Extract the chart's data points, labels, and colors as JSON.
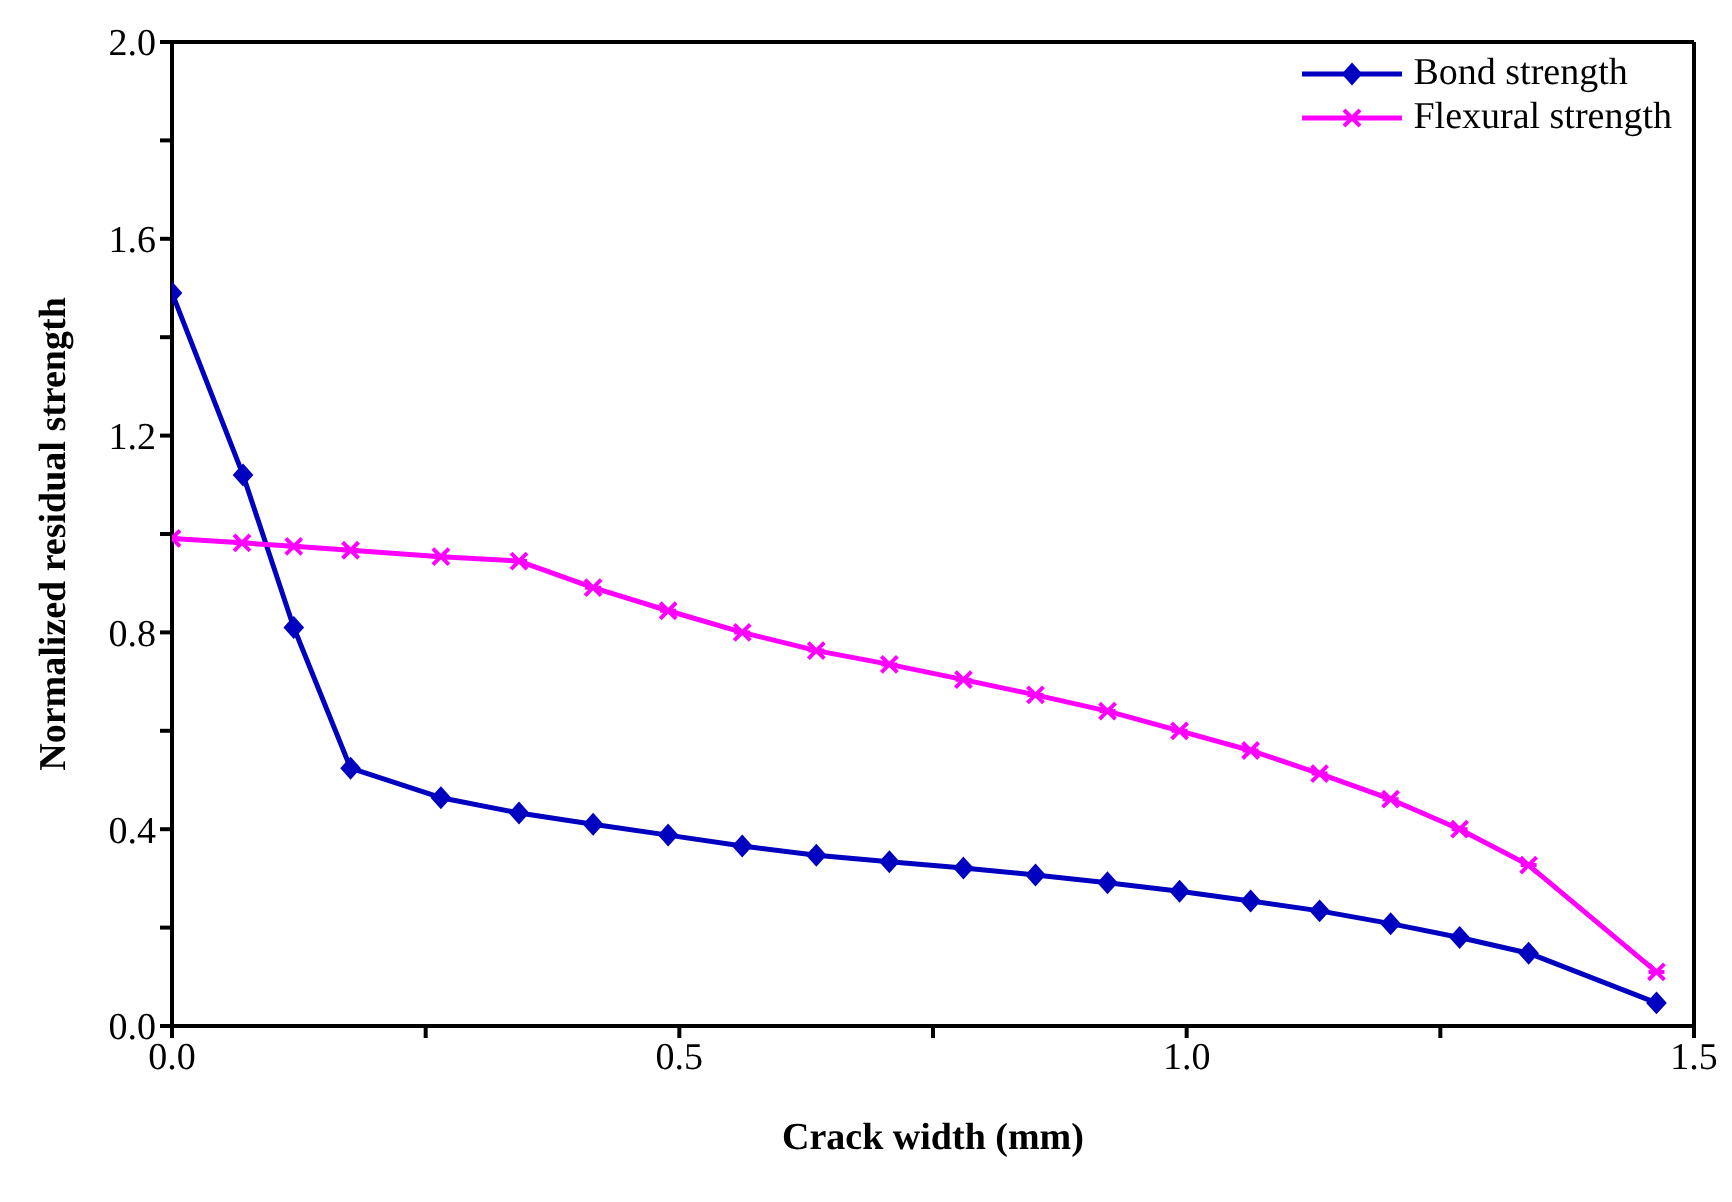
{
  "chart_data": {
    "type": "line",
    "xlabel": "Crack width (mm)",
    "ylabel": "Normalized residual  strength",
    "xlim": [
      0,
      1.5
    ],
    "xticks": [
      {
        "value": 0,
        "label": "0.0"
      },
      {
        "value": 0.25,
        "label": null
      },
      {
        "value": 0.5,
        "label": "0.5"
      },
      {
        "value": 0.75,
        "label": null
      },
      {
        "value": 1,
        "label": "1.0"
      },
      {
        "value": 1.25,
        "label": null
      },
      {
        "value": 1.5,
        "label": "1.5"
      }
    ],
    "ylim": [
      0,
      2
    ],
    "yticks": [
      {
        "value": 0,
        "label": "0.0"
      },
      {
        "value": 0.2,
        "label": null
      },
      {
        "value": 0.4,
        "label": "0.4"
      },
      {
        "value": 0.6,
        "label": null
      },
      {
        "value": 0.8,
        "label": "0.8"
      },
      {
        "value": 1,
        "label": null
      },
      {
        "value": 1.2,
        "label": "1.2"
      },
      {
        "value": 1.4,
        "label": null
      },
      {
        "value": 1.6,
        "label": "1.6"
      },
      {
        "value": 1.8,
        "label": null
      },
      {
        "value": 2,
        "label": "2.0"
      }
    ],
    "legend": "top right",
    "series": [
      {
        "name": "Bond strength",
        "color": "#0000c0",
        "marker": "diamond",
        "x": [
          0,
          0.07,
          0.12,
          0.176,
          0.265,
          0.342,
          0.415,
          0.489,
          0.562,
          0.635,
          0.707,
          0.78,
          0.851,
          0.922,
          0.993,
          1.063,
          1.131,
          1.201,
          1.269,
          1.337,
          1.463
        ],
        "values": [
          1.49,
          1.12,
          0.81,
          0.524,
          0.464,
          0.433,
          0.41,
          0.388,
          0.366,
          0.347,
          0.334,
          0.321,
          0.307,
          0.291,
          0.274,
          0.254,
          0.234,
          0.208,
          0.18,
          0.148,
          0.047
        ]
      },
      {
        "name": "Flexural strength",
        "color": "#ff00ff",
        "marker": "cross",
        "x": [
          0,
          0.069,
          0.12,
          0.176,
          0.265,
          0.342,
          0.415,
          0.489,
          0.562,
          0.635,
          0.707,
          0.78,
          0.851,
          0.922,
          0.993,
          1.063,
          1.131,
          1.201,
          1.269,
          1.337,
          1.463
        ],
        "values": [
          0.991,
          0.982,
          0.975,
          0.967,
          0.954,
          0.945,
          0.891,
          0.844,
          0.8,
          0.763,
          0.735,
          0.704,
          0.673,
          0.64,
          0.6,
          0.56,
          0.513,
          0.461,
          0.4,
          0.327,
          0.11
        ]
      }
    ]
  }
}
